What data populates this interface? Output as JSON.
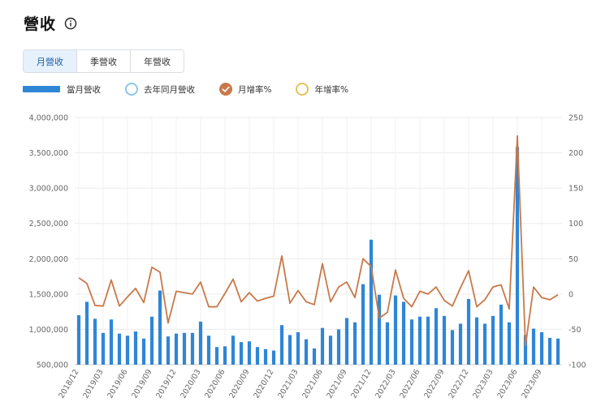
{
  "header": {
    "title": "營收"
  },
  "tabs": [
    {
      "label": "月營收",
      "active": true
    },
    {
      "label": "季營收",
      "active": false
    },
    {
      "label": "年營收",
      "active": false
    }
  ],
  "legend": [
    {
      "label": "當月營收",
      "color": "#2f86d6",
      "checked": true
    },
    {
      "label": "去年同月營收",
      "color": "#8fc4ea",
      "checked": false
    },
    {
      "label": "月增率%",
      "color": "#c8794a",
      "checked": true
    },
    {
      "label": "年增率%",
      "color": "#e2c35a",
      "checked": false
    }
  ],
  "chart_data": {
    "type": "bar",
    "x_ticks": [
      "2018/12",
      "2019/03",
      "2019/06",
      "2019/09",
      "2019/12",
      "2020/03",
      "2020/06",
      "2020/09",
      "2020/12",
      "2021/03",
      "2021/06",
      "2021/09",
      "2021/12",
      "2022/03",
      "2022/06",
      "2022/09",
      "2022/12",
      "2023/03",
      "2023/06",
      "2023/09"
    ],
    "y_left_ticks": [
      "500,000",
      "1,000,000",
      "1,500,000",
      "2,000,000",
      "2,500,000",
      "3,000,000",
      "3,500,000",
      "4,000,000"
    ],
    "y_right_ticks": [
      "-100",
      "-50",
      "0",
      "50",
      "100",
      "150",
      "200",
      "250"
    ],
    "ylim_left": [
      500000,
      4000000
    ],
    "ylim_right": [
      -100,
      250
    ],
    "grid": true,
    "series": [
      {
        "name": "當月營收",
        "type": "bar",
        "axis": "left",
        "values": [
          1200000,
          1390000,
          1150000,
          950000,
          1140000,
          940000,
          910000,
          970000,
          870000,
          1180000,
          1550000,
          900000,
          940000,
          950000,
          950000,
          1110000,
          910000,
          750000,
          760000,
          910000,
          820000,
          830000,
          750000,
          720000,
          700000,
          1060000,
          920000,
          960000,
          860000,
          730000,
          1020000,
          910000,
          1000000,
          1160000,
          1100000,
          1640000,
          2270000,
          1490000,
          1100000,
          1480000,
          1390000,
          1140000,
          1180000,
          1180000,
          1300000,
          1190000,
          990000,
          1080000,
          1430000,
          1170000,
          1080000,
          1190000,
          1350000,
          1100000,
          3580000,
          920000,
          1010000,
          960000,
          880000,
          870000
        ]
      },
      {
        "name": "月增率%",
        "type": "line",
        "axis": "right",
        "values": [
          23,
          15,
          -16,
          -17,
          20,
          -17,
          -4,
          8,
          -12,
          38,
          31,
          -41,
          4,
          2,
          0,
          17,
          -18,
          -18,
          1,
          21,
          -11,
          2,
          -10,
          -6,
          -3,
          54,
          -13,
          5,
          -11,
          -15,
          43,
          -11,
          10,
          17,
          -5,
          50,
          39,
          -34,
          -26,
          34,
          -6,
          -18,
          4,
          0,
          10,
          -9,
          -17,
          9,
          33,
          -18,
          -8,
          10,
          13,
          -21,
          224,
          -73,
          10,
          -5,
          -8,
          -1
        ]
      }
    ]
  }
}
